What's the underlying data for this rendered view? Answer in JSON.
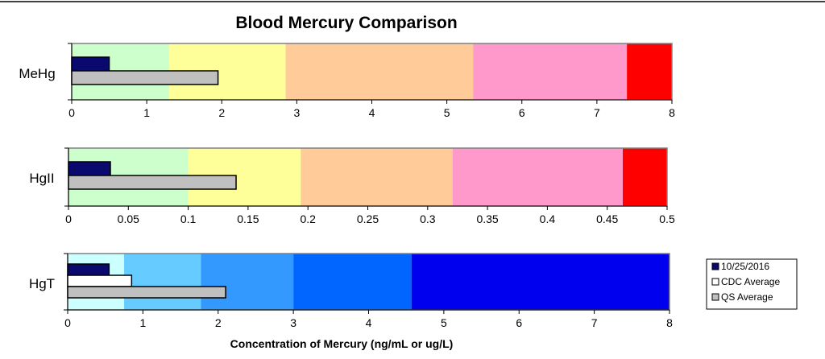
{
  "chart_data": {
    "type": "bar",
    "title": "Blood Mercury Comparison",
    "xlabel": "Concentration of Mercury (ng/mL or ug/L)",
    "legend": {
      "placement": "right",
      "entries": [
        {
          "name": "10/25/2016",
          "color": "#0a0a6e"
        },
        {
          "name": "CDC Average",
          "color": "#ffffff"
        },
        {
          "name": "QS Average",
          "color": "#c0c0c0"
        }
      ]
    },
    "panels": [
      {
        "category": "MeHg",
        "xlim": [
          0,
          8
        ],
        "ticks": [
          0,
          1,
          2,
          3,
          4,
          5,
          6,
          7,
          8
        ],
        "tick_labels": [
          "0",
          "1",
          "2",
          "3",
          "4",
          "5",
          "6",
          "7",
          "8"
        ],
        "zones": [
          {
            "from": 0,
            "to": 1.3,
            "color": "#ccffcc"
          },
          {
            "from": 1.3,
            "to": 2.85,
            "color": "#ffff99"
          },
          {
            "from": 2.85,
            "to": 5.35,
            "color": "#ffcc99"
          },
          {
            "from": 5.35,
            "to": 7.4,
            "color": "#ff99cc"
          },
          {
            "from": 7.4,
            "to": 8,
            "color": "#ff0000"
          }
        ],
        "series": [
          {
            "name": "10/25/2016",
            "value": 0.5,
            "color": "#0a0a6e"
          },
          {
            "name": "QS Average",
            "value": 1.95,
            "color": "#c0c0c0"
          }
        ]
      },
      {
        "category": "HgII",
        "xlim": [
          0,
          0.5
        ],
        "ticks": [
          0,
          0.05,
          0.1,
          0.15,
          0.2,
          0.25,
          0.3,
          0.35,
          0.4,
          0.45,
          0.5
        ],
        "tick_labels": [
          "0",
          "0.05",
          "0.1",
          "0.15",
          "0.2",
          "0.25",
          "0.3",
          "0.35",
          "0.4",
          "0.45",
          "0.5"
        ],
        "zones": [
          {
            "from": 0,
            "to": 0.1,
            "color": "#ccffcc"
          },
          {
            "from": 0.1,
            "to": 0.194,
            "color": "#ffff99"
          },
          {
            "from": 0.194,
            "to": 0.321,
            "color": "#ffcc99"
          },
          {
            "from": 0.321,
            "to": 0.463,
            "color": "#ff99cc"
          },
          {
            "from": 0.463,
            "to": 0.5,
            "color": "#ff0000"
          }
        ],
        "series": [
          {
            "name": "10/25/2016",
            "value": 0.035,
            "color": "#0a0a6e"
          },
          {
            "name": "QS Average",
            "value": 0.14,
            "color": "#c0c0c0"
          }
        ]
      },
      {
        "category": "HgT",
        "xlim": [
          0,
          8
        ],
        "ticks": [
          0,
          1,
          2,
          3,
          4,
          5,
          6,
          7,
          8
        ],
        "tick_labels": [
          "0",
          "1",
          "2",
          "3",
          "4",
          "5",
          "6",
          "7",
          "8"
        ],
        "zones": [
          {
            "from": 0,
            "to": 0.75,
            "color": "#ccffff"
          },
          {
            "from": 0.75,
            "to": 1.77,
            "color": "#66ccff"
          },
          {
            "from": 1.77,
            "to": 3.0,
            "color": "#3399ff"
          },
          {
            "from": 3.0,
            "to": 4.57,
            "color": "#0066ff"
          },
          {
            "from": 4.57,
            "to": 8,
            "color": "#0000ee"
          }
        ],
        "series": [
          {
            "name": "10/25/2016",
            "value": 0.55,
            "color": "#0a0a6e"
          },
          {
            "name": "CDC Average",
            "value": 0.85,
            "color": "#ffffff"
          },
          {
            "name": "QS Average",
            "value": 2.1,
            "color": "#c0c0c0"
          }
        ]
      }
    ]
  }
}
